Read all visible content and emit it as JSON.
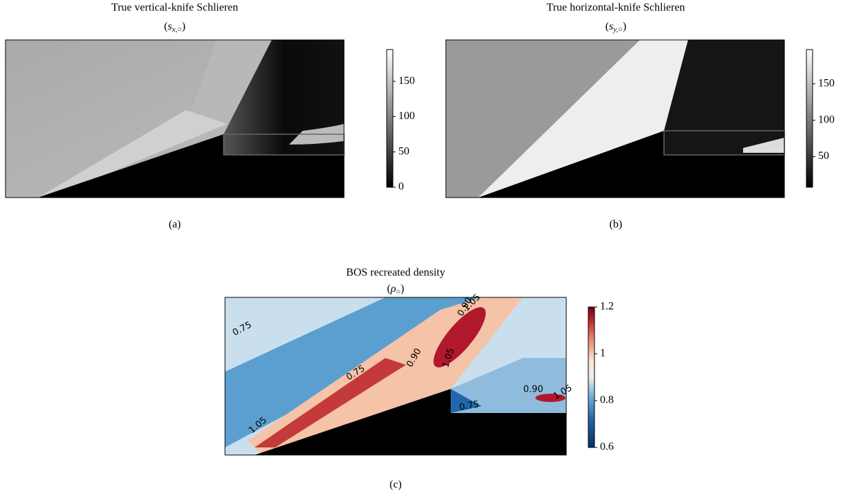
{
  "panels": [
    {
      "title": "True vertical-knife Schlieren",
      "subtitle": {
        "open": "(",
        "symbol": "s",
        "subscript": "x,○",
        "close": ")"
      },
      "caption": "(a)",
      "colorbar": {
        "lim": [
          0,
          195
        ],
        "ticks": [
          0,
          50,
          100,
          150
        ],
        "cmap": "gray"
      }
    },
    {
      "title": "True horizontal-knife Schlieren",
      "subtitle": {
        "open": "(",
        "symbol": "s",
        "subscript": "y,○",
        "close": ")"
      },
      "caption": "(b)",
      "colorbar": {
        "lim": [
          8,
          197
        ],
        "ticks": [
          50,
          100,
          150
        ],
        "cmap": "gray"
      }
    },
    {
      "title": "BOS recreated density",
      "subtitle": {
        "open": "(",
        "symbol": "ρ",
        "subscript": "○",
        "close": ")"
      },
      "caption": "(c)",
      "colorbar": {
        "lim": [
          0.6,
          1.2
        ],
        "ticks": [
          0.6,
          0.8,
          1.0,
          1.2
        ],
        "cmap": "RdBu_r"
      },
      "contour_labels": [
        "0.75",
        "0.75",
        "0.90",
        "1.05",
        "0.90",
        "1.05",
        "0.90",
        "1.05",
        "0.75",
        "1.05"
      ]
    }
  ]
}
